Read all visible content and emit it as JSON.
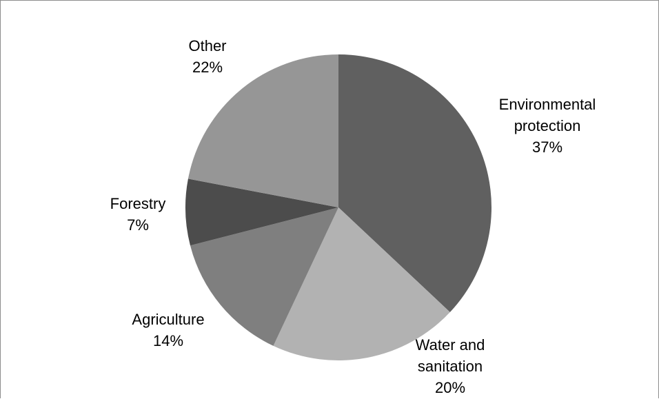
{
  "chart_data": {
    "type": "pie",
    "title": "",
    "start_angle": 0,
    "direction": "clockwise",
    "legend": "none",
    "slices": [
      {
        "label_lines": [
          "Environmental",
          "protection"
        ],
        "percent_label": "37%",
        "value": 37,
        "color": "#606060"
      },
      {
        "label_lines": [
          "Water and",
          "sanitation"
        ],
        "percent_label": "20%",
        "value": 20,
        "color": "#b2b2b2"
      },
      {
        "label_lines": [
          "Agriculture"
        ],
        "percent_label": "14%",
        "value": 14,
        "color": "#7f7f7f"
      },
      {
        "label_lines": [
          "Forestry"
        ],
        "percent_label": "7%",
        "value": 7,
        "color": "#4c4c4c"
      },
      {
        "label_lines": [
          "Other"
        ],
        "percent_label": "22%",
        "value": 22,
        "color": "#969696"
      }
    ]
  }
}
